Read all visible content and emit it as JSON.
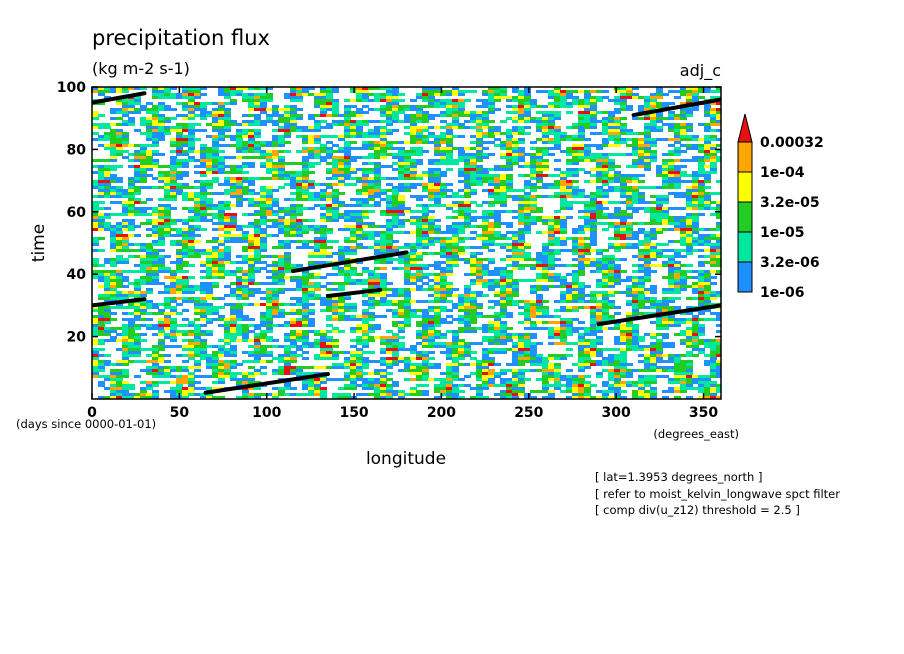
{
  "chart_data": {
    "type": "heatmap",
    "title": "precipitation flux",
    "subtitle": "(kg m-2 s-1)",
    "label_right": "adj_c",
    "xlabel": "longitude",
    "ylabel": "time",
    "x_units": "(degrees_east)",
    "y_units": "(days since 0000-01-01)",
    "xlim": [
      0,
      360
    ],
    "ylim": [
      0,
      100
    ],
    "x_ticks": [
      "0",
      "50",
      "100",
      "150",
      "200",
      "250",
      "300",
      "350"
    ],
    "y_ticks": [
      "20",
      "40",
      "60",
      "80",
      "100"
    ],
    "x_tick_values": [
      0,
      50,
      100,
      150,
      200,
      250,
      300,
      350
    ],
    "y_tick_values": [
      20,
      40,
      60,
      80,
      100
    ],
    "colorbar": {
      "levels": [
        "1e-06",
        "3.2e-06",
        "1e-05",
        "3.2e-05",
        "1e-04",
        "0.00032"
      ],
      "colors": [
        "#1e90ff",
        "#00e8a0",
        "#22cc22",
        "#ffff00",
        "#ffa500",
        "#e81010"
      ]
    },
    "kelvin_wave_tracks": [
      {
        "lon": [
          0,
          30
        ],
        "time": [
          95,
          98
        ]
      },
      {
        "lon": [
          310,
          360
        ],
        "time": [
          91,
          96
        ]
      },
      {
        "lon": [
          115,
          180
        ],
        "time": [
          41,
          47
        ]
      },
      {
        "lon": [
          135,
          165
        ],
        "time": [
          33,
          35
        ]
      },
      {
        "lon": [
          0,
          30
        ],
        "time": [
          30,
          32
        ]
      },
      {
        "lon": [
          290,
          360
        ],
        "time": [
          24,
          30
        ]
      },
      {
        "lon": [
          65,
          135
        ],
        "time": [
          2,
          8
        ]
      }
    ],
    "annotations": [
      "[ lat=1.3953 degrees_north ]",
      "[ refer to moist_kelvin_longwave spct filter",
      "[ comp div(u_z12) threshold = 2.5 ]"
    ]
  }
}
